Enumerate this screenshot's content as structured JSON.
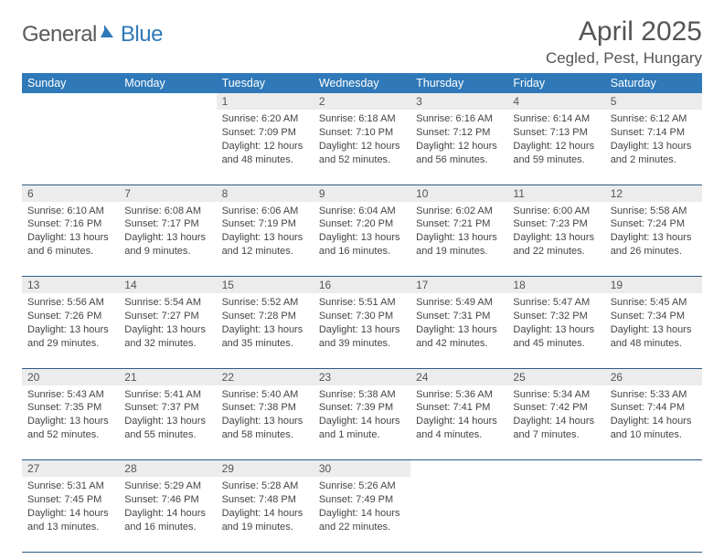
{
  "logo": {
    "part1": "General",
    "part2": "Blue"
  },
  "title": "April 2025",
  "location": "Cegled, Pest, Hungary",
  "colors": {
    "header_bg": "#2f79b9",
    "header_text": "#ffffff",
    "daynum_bg": "#ececec",
    "cell_border": "#2f5b86",
    "body_text": "#444444",
    "logo_gray": "#5a5a5a",
    "logo_blue": "#2f79b9"
  },
  "weekdays": [
    "Sunday",
    "Monday",
    "Tuesday",
    "Wednesday",
    "Thursday",
    "Friday",
    "Saturday"
  ],
  "weeks": [
    [
      {
        "day": "",
        "lines": []
      },
      {
        "day": "",
        "lines": []
      },
      {
        "day": "1",
        "lines": [
          "Sunrise: 6:20 AM",
          "Sunset: 7:09 PM",
          "Daylight: 12 hours",
          "and 48 minutes."
        ]
      },
      {
        "day": "2",
        "lines": [
          "Sunrise: 6:18 AM",
          "Sunset: 7:10 PM",
          "Daylight: 12 hours",
          "and 52 minutes."
        ]
      },
      {
        "day": "3",
        "lines": [
          "Sunrise: 6:16 AM",
          "Sunset: 7:12 PM",
          "Daylight: 12 hours",
          "and 56 minutes."
        ]
      },
      {
        "day": "4",
        "lines": [
          "Sunrise: 6:14 AM",
          "Sunset: 7:13 PM",
          "Daylight: 12 hours",
          "and 59 minutes."
        ]
      },
      {
        "day": "5",
        "lines": [
          "Sunrise: 6:12 AM",
          "Sunset: 7:14 PM",
          "Daylight: 13 hours",
          "and 2 minutes."
        ]
      }
    ],
    [
      {
        "day": "6",
        "lines": [
          "Sunrise: 6:10 AM",
          "Sunset: 7:16 PM",
          "Daylight: 13 hours",
          "and 6 minutes."
        ]
      },
      {
        "day": "7",
        "lines": [
          "Sunrise: 6:08 AM",
          "Sunset: 7:17 PM",
          "Daylight: 13 hours",
          "and 9 minutes."
        ]
      },
      {
        "day": "8",
        "lines": [
          "Sunrise: 6:06 AM",
          "Sunset: 7:19 PM",
          "Daylight: 13 hours",
          "and 12 minutes."
        ]
      },
      {
        "day": "9",
        "lines": [
          "Sunrise: 6:04 AM",
          "Sunset: 7:20 PM",
          "Daylight: 13 hours",
          "and 16 minutes."
        ]
      },
      {
        "day": "10",
        "lines": [
          "Sunrise: 6:02 AM",
          "Sunset: 7:21 PM",
          "Daylight: 13 hours",
          "and 19 minutes."
        ]
      },
      {
        "day": "11",
        "lines": [
          "Sunrise: 6:00 AM",
          "Sunset: 7:23 PM",
          "Daylight: 13 hours",
          "and 22 minutes."
        ]
      },
      {
        "day": "12",
        "lines": [
          "Sunrise: 5:58 AM",
          "Sunset: 7:24 PM",
          "Daylight: 13 hours",
          "and 26 minutes."
        ]
      }
    ],
    [
      {
        "day": "13",
        "lines": [
          "Sunrise: 5:56 AM",
          "Sunset: 7:26 PM",
          "Daylight: 13 hours",
          "and 29 minutes."
        ]
      },
      {
        "day": "14",
        "lines": [
          "Sunrise: 5:54 AM",
          "Sunset: 7:27 PM",
          "Daylight: 13 hours",
          "and 32 minutes."
        ]
      },
      {
        "day": "15",
        "lines": [
          "Sunrise: 5:52 AM",
          "Sunset: 7:28 PM",
          "Daylight: 13 hours",
          "and 35 minutes."
        ]
      },
      {
        "day": "16",
        "lines": [
          "Sunrise: 5:51 AM",
          "Sunset: 7:30 PM",
          "Daylight: 13 hours",
          "and 39 minutes."
        ]
      },
      {
        "day": "17",
        "lines": [
          "Sunrise: 5:49 AM",
          "Sunset: 7:31 PM",
          "Daylight: 13 hours",
          "and 42 minutes."
        ]
      },
      {
        "day": "18",
        "lines": [
          "Sunrise: 5:47 AM",
          "Sunset: 7:32 PM",
          "Daylight: 13 hours",
          "and 45 minutes."
        ]
      },
      {
        "day": "19",
        "lines": [
          "Sunrise: 5:45 AM",
          "Sunset: 7:34 PM",
          "Daylight: 13 hours",
          "and 48 minutes."
        ]
      }
    ],
    [
      {
        "day": "20",
        "lines": [
          "Sunrise: 5:43 AM",
          "Sunset: 7:35 PM",
          "Daylight: 13 hours",
          "and 52 minutes."
        ]
      },
      {
        "day": "21",
        "lines": [
          "Sunrise: 5:41 AM",
          "Sunset: 7:37 PM",
          "Daylight: 13 hours",
          "and 55 minutes."
        ]
      },
      {
        "day": "22",
        "lines": [
          "Sunrise: 5:40 AM",
          "Sunset: 7:38 PM",
          "Daylight: 13 hours",
          "and 58 minutes."
        ]
      },
      {
        "day": "23",
        "lines": [
          "Sunrise: 5:38 AM",
          "Sunset: 7:39 PM",
          "Daylight: 14 hours",
          "and 1 minute."
        ]
      },
      {
        "day": "24",
        "lines": [
          "Sunrise: 5:36 AM",
          "Sunset: 7:41 PM",
          "Daylight: 14 hours",
          "and 4 minutes."
        ]
      },
      {
        "day": "25",
        "lines": [
          "Sunrise: 5:34 AM",
          "Sunset: 7:42 PM",
          "Daylight: 14 hours",
          "and 7 minutes."
        ]
      },
      {
        "day": "26",
        "lines": [
          "Sunrise: 5:33 AM",
          "Sunset: 7:44 PM",
          "Daylight: 14 hours",
          "and 10 minutes."
        ]
      }
    ],
    [
      {
        "day": "27",
        "lines": [
          "Sunrise: 5:31 AM",
          "Sunset: 7:45 PM",
          "Daylight: 14 hours",
          "and 13 minutes."
        ]
      },
      {
        "day": "28",
        "lines": [
          "Sunrise: 5:29 AM",
          "Sunset: 7:46 PM",
          "Daylight: 14 hours",
          "and 16 minutes."
        ]
      },
      {
        "day": "29",
        "lines": [
          "Sunrise: 5:28 AM",
          "Sunset: 7:48 PM",
          "Daylight: 14 hours",
          "and 19 minutes."
        ]
      },
      {
        "day": "30",
        "lines": [
          "Sunrise: 5:26 AM",
          "Sunset: 7:49 PM",
          "Daylight: 14 hours",
          "and 22 minutes."
        ]
      },
      {
        "day": "",
        "lines": []
      },
      {
        "day": "",
        "lines": []
      },
      {
        "day": "",
        "lines": []
      }
    ]
  ]
}
